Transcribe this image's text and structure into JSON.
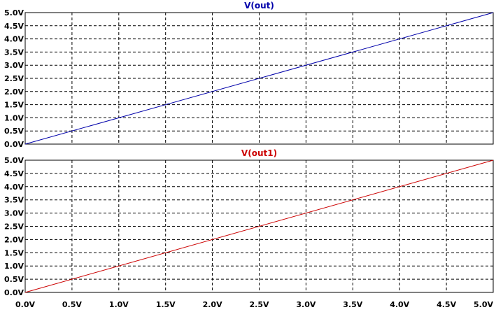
{
  "chart_data": [
    {
      "type": "line",
      "title": "V(out)",
      "title_color": "#0000aa",
      "x": [
        0,
        5
      ],
      "series": [
        {
          "name": "V(out)",
          "color": "#0000aa",
          "values": [
            0,
            5
          ]
        }
      ],
      "xlim": [
        0,
        5
      ],
      "ylim": [
        0,
        5
      ],
      "yticks": [
        "0.0V",
        "0.5V",
        "1.0V",
        "1.5V",
        "2.0V",
        "2.5V",
        "3.0V",
        "3.5V",
        "4.0V",
        "4.5V",
        "5.0V"
      ],
      "grid": true,
      "grid_style": "dashed"
    },
    {
      "type": "line",
      "title": "V(out1)",
      "title_color": "#cc0000",
      "x": [
        0,
        5
      ],
      "series": [
        {
          "name": "V(out1)",
          "color": "#cc0000",
          "values": [
            0,
            5
          ]
        }
      ],
      "xlim": [
        0,
        5
      ],
      "ylim": [
        0,
        5
      ],
      "yticks": [
        "0.0V",
        "0.5V",
        "1.0V",
        "1.5V",
        "2.0V",
        "2.5V",
        "3.0V",
        "3.5V",
        "4.0V",
        "4.5V",
        "5.0V"
      ],
      "xticks": [
        "0.0V",
        "0.5V",
        "1.0V",
        "1.5V",
        "2.0V",
        "2.5V",
        "3.0V",
        "3.5V",
        "4.0V",
        "4.5V",
        "5.0V"
      ],
      "grid": true,
      "grid_style": "dashed"
    }
  ]
}
